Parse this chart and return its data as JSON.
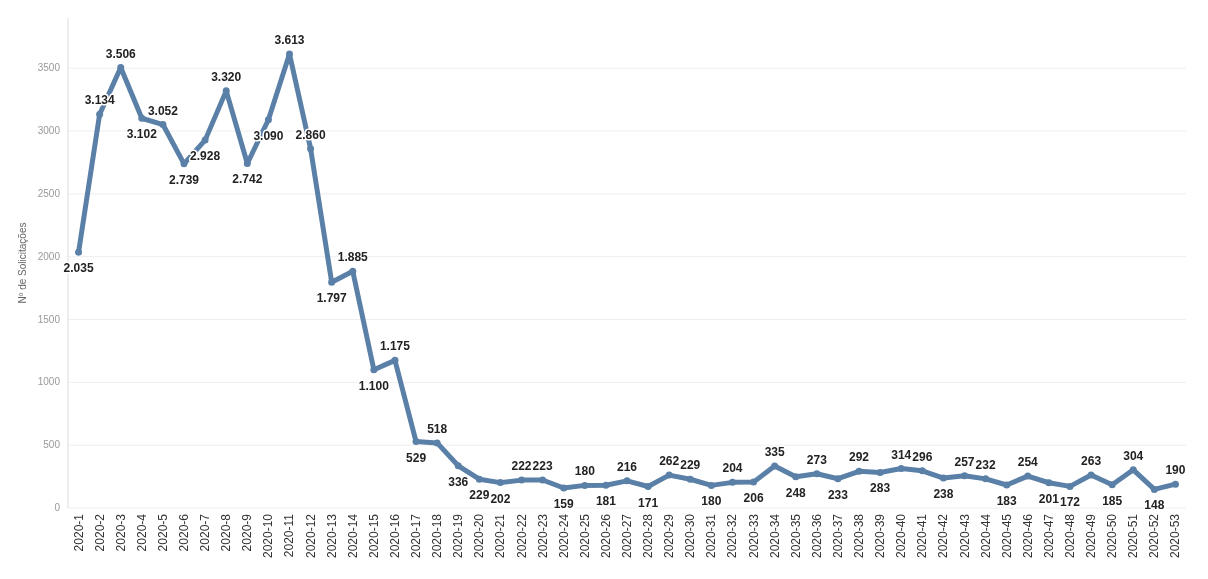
{
  "chart_data": {
    "type": "line",
    "ylabel": "Nº de Solicitações",
    "categories": [
      "2020-1",
      "2020-2",
      "2020-3",
      "2020-4",
      "2020-5",
      "2020-6",
      "2020-7",
      "2020-8",
      "2020-9",
      "2020-10",
      "2020-11",
      "2020-12",
      "2020-13",
      "2020-14",
      "2020-15",
      "2020-16",
      "2020-17",
      "2020-18",
      "2020-19",
      "2020-20",
      "2020-21",
      "2020-22",
      "2020-23",
      "2020-24",
      "2020-25",
      "2020-26",
      "2020-27",
      "2020-28",
      "2020-29",
      "2020-30",
      "2020-31",
      "2020-32",
      "2020-33",
      "2020-34",
      "2020-35",
      "2020-36",
      "2020-37",
      "2020-38",
      "2020-39",
      "2020-40",
      "2020-41",
      "2020-42",
      "2020-43",
      "2020-44",
      "2020-45",
      "2020-46",
      "2020-47",
      "2020-48",
      "2020-49",
      "2020-50",
      "2020-51",
      "2020-52",
      "2020-53"
    ],
    "series": [
      {
        "color": "#5b80a8",
        "values": [
          2035,
          3134,
          3506,
          3102,
          3052,
          2739,
          2928,
          3320,
          2742,
          3090,
          3613,
          2860,
          1797,
          1885,
          1100,
          1175,
          529,
          518,
          336,
          229,
          202,
          222,
          223,
          159,
          180,
          181,
          216,
          171,
          262,
          229,
          180,
          204,
          206,
          335,
          248,
          273,
          233,
          292,
          283,
          314,
          296,
          238,
          257,
          232,
          183,
          254,
          201,
          172,
          263,
          185,
          304,
          148,
          190
        ],
        "value_labels": [
          "2.035",
          "3.134",
          "3.506",
          "3.102",
          "3.052",
          "2.739",
          "2.928",
          "3.320",
          "2.742",
          "3.090",
          "3.613",
          "2.860",
          "1.797",
          "1.885",
          "1.100",
          "1.175",
          "529",
          "518",
          "336",
          "229",
          "202",
          "222",
          "223",
          "159",
          "180",
          "181",
          "216",
          "171",
          "262",
          "229",
          "180",
          "204",
          "206",
          "335",
          "248",
          "273",
          "233",
          "292",
          "283",
          "314",
          "296",
          "238",
          "257",
          "232",
          "183",
          "254",
          "201",
          "172",
          "263",
          "185",
          "304",
          "148",
          "190"
        ]
      }
    ],
    "ylim": [
      0,
      3900
    ],
    "yticks": [
      0,
      500,
      1000,
      1500,
      2000,
      2500,
      3000,
      3500
    ],
    "grid": "y",
    "marker": "circle",
    "line_style": "solid"
  }
}
